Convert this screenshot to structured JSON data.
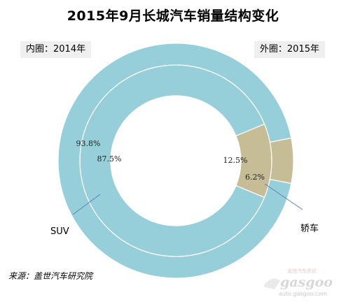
{
  "title": "2015年9月长城汽车销量结构变化",
  "legend": {
    "inner": "内圈：2014年",
    "outer": "外圈：2015年"
  },
  "source": "来源：盖世汽车研究院",
  "watermark": {
    "brand": "gasgoo",
    "tagline": "盖世汽车资讯",
    "url": "auto.gasgoo.com"
  },
  "colors": {
    "suv": "#96ceda",
    "sedan": "#c6bd96",
    "leader": "#5b84b1"
  },
  "chart_data": {
    "type": "donut",
    "categories": [
      "SUV",
      "轿车"
    ],
    "rings": [
      {
        "ring": "inner",
        "year": "2014",
        "values": [
          87.5,
          12.5
        ],
        "labels": [
          "87.5%",
          "12.5%"
        ]
      },
      {
        "ring": "outer",
        "year": "2015",
        "values": [
          93.8,
          6.2
        ],
        "labels": [
          "93.8%",
          "6.2%"
        ]
      }
    ],
    "category_labels": [
      "SUV",
      "轿车"
    ]
  }
}
